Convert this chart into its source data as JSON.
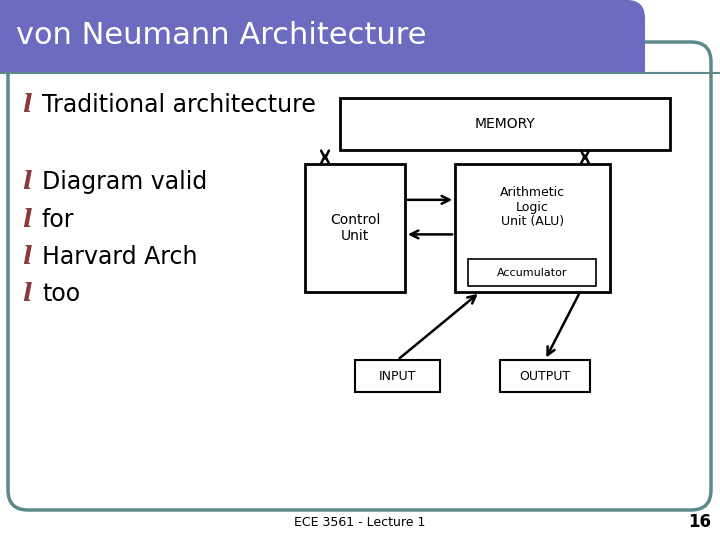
{
  "title": "von Neumann Architecture",
  "title_bg_color": "#6B6BBF",
  "title_text_color": "#FFFFFF",
  "slide_bg_color": "#FFFFFF",
  "border_color": "#5C8A8A",
  "bullet_color": "#8B3A3A",
  "bullet_points": [
    "Traditional architecture",
    "Diagram valid",
    "for",
    "Harvard Arch",
    "too"
  ],
  "footer_text": "ECE 3561 - Lecture 1",
  "footer_page": "16",
  "diagram": {
    "memory_label": "MEMORY",
    "cu_label": "Control\nUnit",
    "alu_label": "Arithmetic\nLogic\nUnit (ALU)",
    "acc_label": "Accumulator",
    "input_label": "INPUT",
    "output_label": "OUTPUT"
  }
}
